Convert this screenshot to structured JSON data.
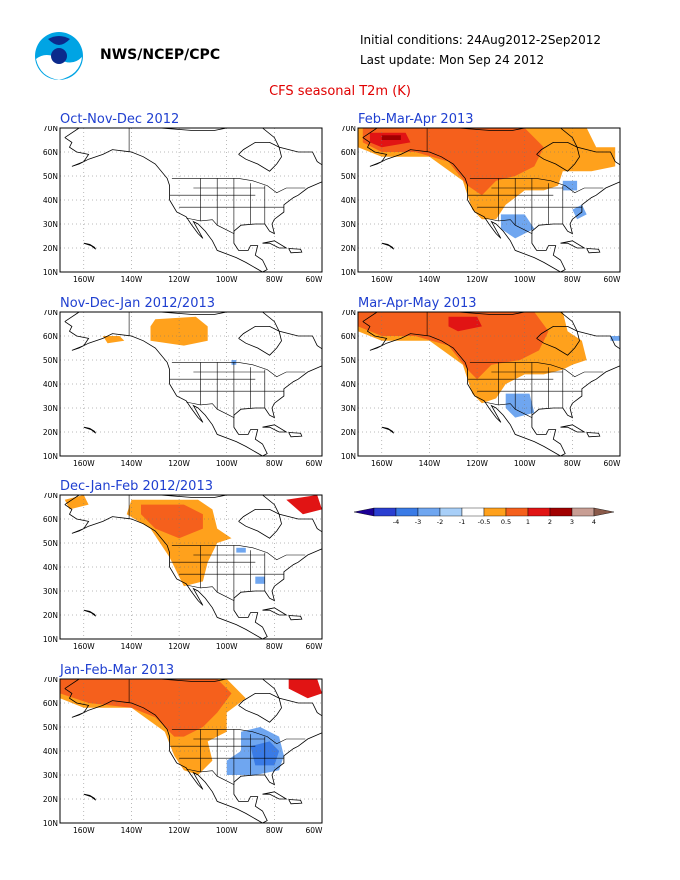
{
  "header": {
    "agency": "NWS/NCEP/CPC",
    "initial_conditions": "Initial conditions: 24Aug2012-2Sep2012",
    "last_update": "Last update: Mon Sep 24 2012",
    "title": "CFS seasonal T2m (K)"
  },
  "axes": {
    "lat_labels": [
      "70N",
      "60N",
      "50N",
      "40N",
      "30N",
      "20N",
      "10N"
    ],
    "lon_labels": [
      "160W",
      "140W",
      "120W",
      "100W",
      "80W",
      "60W"
    ]
  },
  "panels": [
    {
      "id": "ond",
      "title": "Oct-Nov-Dec 2012"
    },
    {
      "id": "ndj",
      "title": "Nov-Dec-Jan 2012/2013"
    },
    {
      "id": "djf",
      "title": "Dec-Jan-Feb 2012/2013"
    },
    {
      "id": "jfm",
      "title": "Jan-Feb-Mar 2013"
    },
    {
      "id": "fma",
      "title": "Feb-Mar-Apr 2013"
    },
    {
      "id": "mam",
      "title": "Mar-Apr-May 2013"
    }
  ],
  "legend": {
    "labels": [
      "-4",
      "-3",
      "-2",
      "-1",
      "-0.5",
      "0.5",
      "1",
      "2",
      "3",
      "4"
    ],
    "colors": [
      "#1c0096",
      "#2a3fd1",
      "#3a7be6",
      "#6fa6f0",
      "#a8cff8",
      "#ffffff",
      "#ffa11c",
      "#f5601c",
      "#e11414",
      "#a10000",
      "#c89e94",
      "#8a5a4a"
    ]
  },
  "colors": {
    "title": "#e00000",
    "panel_title": "#1f3fd0",
    "warm_light": "#ffa11c",
    "warm_mid": "#f5601c",
    "warm_strong": "#e11414",
    "warm_dark": "#a10000",
    "cool_light": "#6fa6f0",
    "cool_mid": "#3a7be6"
  }
}
